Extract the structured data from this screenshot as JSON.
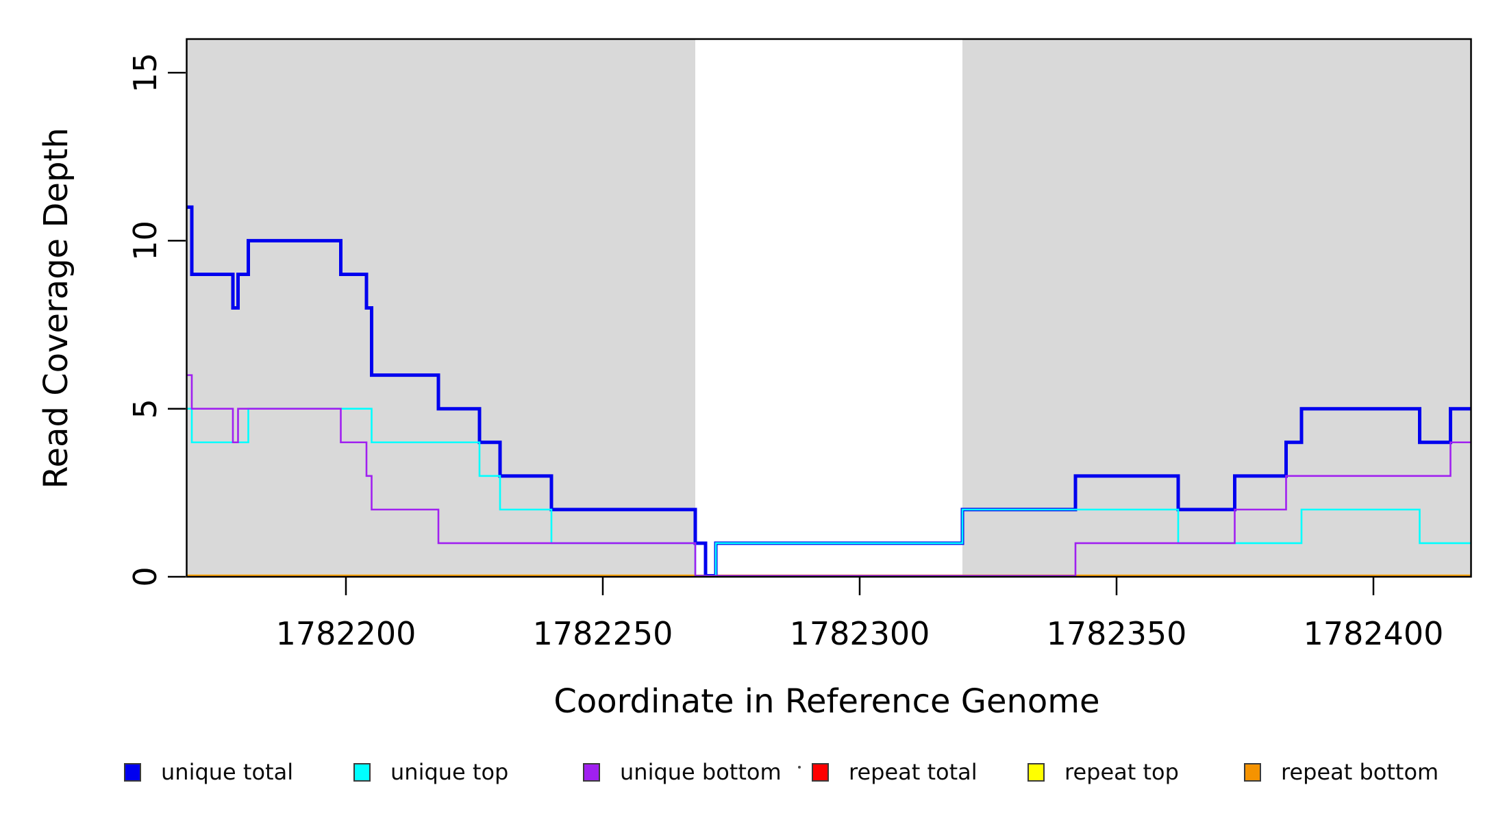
{
  "chart_data": {
    "type": "line",
    "subtype": "step-coverage",
    "title": "",
    "xlabel": "Coordinate in Reference Genome",
    "ylabel": "Read Coverage Depth",
    "xlim": [
      1782169,
      1782419
    ],
    "ylim": [
      0,
      16
    ],
    "x_ticks": [
      1782200,
      1782250,
      1782300,
      1782350,
      1782400
    ],
    "y_ticks": [
      0,
      5,
      10,
      15
    ],
    "grid": false,
    "legend_position": "bottom",
    "background_shading": {
      "color": "#d9d9d9",
      "regions": [
        [
          1782169,
          1782268
        ],
        [
          1782320,
          1782419
        ]
      ]
    },
    "series": [
      {
        "name": "unique total",
        "color": "#0000ee",
        "steps": [
          [
            1782169,
            11
          ],
          [
            1782170,
            9
          ],
          [
            1782178,
            8
          ],
          [
            1782179,
            9
          ],
          [
            1782181,
            10
          ],
          [
            1782199,
            9
          ],
          [
            1782204,
            8
          ],
          [
            1782205,
            6
          ],
          [
            1782218,
            5
          ],
          [
            1782226,
            4
          ],
          [
            1782230,
            3
          ],
          [
            1782240,
            2
          ],
          [
            1782268,
            1
          ],
          [
            1782270,
            0
          ],
          [
            1782272,
            1
          ],
          [
            1782320,
            2
          ],
          [
            1782342,
            3
          ],
          [
            1782362,
            2
          ],
          [
            1782373,
            3
          ],
          [
            1782383,
            4
          ],
          [
            1782386,
            5
          ],
          [
            1782409,
            4
          ],
          [
            1782415,
            5
          ]
        ]
      },
      {
        "name": "unique top",
        "color": "#00ffff",
        "steps": [
          [
            1782169,
            5
          ],
          [
            1782170,
            4
          ],
          [
            1782181,
            5
          ],
          [
            1782205,
            4
          ],
          [
            1782226,
            3
          ],
          [
            1782230,
            2
          ],
          [
            1782240,
            1
          ],
          [
            1782268,
            0
          ],
          [
            1782272,
            1
          ],
          [
            1782320,
            2
          ],
          [
            1782362,
            1
          ],
          [
            1782386,
            2
          ],
          [
            1782409,
            1
          ]
        ]
      },
      {
        "name": "unique bottom",
        "color": "#a020f0",
        "steps": [
          [
            1782169,
            6
          ],
          [
            1782170,
            5
          ],
          [
            1782178,
            4
          ],
          [
            1782179,
            5
          ],
          [
            1782199,
            4
          ],
          [
            1782204,
            3
          ],
          [
            1782205,
            2
          ],
          [
            1782218,
            1
          ],
          [
            1782268,
            0
          ],
          [
            1782342,
            1
          ],
          [
            1782373,
            2
          ],
          [
            1782383,
            3
          ],
          [
            1782415,
            4
          ]
        ]
      },
      {
        "name": "repeat total",
        "color": "#ff0000",
        "steps": [
          [
            1782169,
            0
          ]
        ]
      },
      {
        "name": "repeat top",
        "color": "#ffff00",
        "steps": [
          [
            1782169,
            0
          ]
        ]
      },
      {
        "name": "repeat bottom",
        "color": "#ffa500",
        "steps": [
          [
            1782169,
            0
          ]
        ]
      }
    ]
  },
  "legend": {
    "items": [
      {
        "label": "unique total",
        "color": "#0000f0"
      },
      {
        "label": "unique top",
        "color": "#00ffff"
      },
      {
        "label": "unique bottom",
        "color": "#a020f0"
      },
      {
        "label": "repeat total",
        "color": "#ff0000"
      },
      {
        "label": "repeat top",
        "color": "#ffff00"
      },
      {
        "label": "repeat bottom",
        "color": "#f59300"
      }
    ]
  }
}
